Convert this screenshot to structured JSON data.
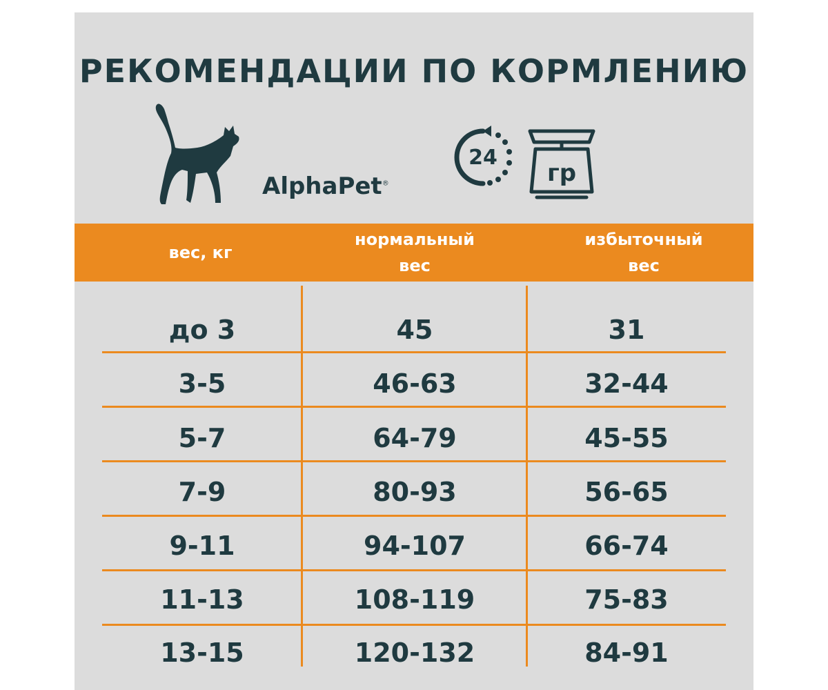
{
  "title": "РЕКОМЕНДАЦИИ ПО КОРМЛЕНИЮ",
  "brand": {
    "name": "AlphaPet",
    "mark": "®"
  },
  "icons": {
    "cat": "cat-silhouette-icon",
    "clock": "24-hour-cycle-icon",
    "scale": "kitchen-scale-icon"
  },
  "clock_label": "24",
  "scale_label": "гр",
  "colors": {
    "accent": "#eb8a1f",
    "text": "#1f3a40",
    "background": "#dcdcdc"
  },
  "table": {
    "headers": [
      [
        "вес, кг"
      ],
      [
        "нормальный",
        "вес"
      ],
      [
        "избыточный",
        "вес"
      ]
    ],
    "rows": [
      [
        "до 3",
        "45",
        "31"
      ],
      [
        "3-5",
        "46-63",
        "32-44"
      ],
      [
        "5-7",
        "64-79",
        "45-55"
      ],
      [
        "7-9",
        "80-93",
        "56-65"
      ],
      [
        "9-11",
        "94-107",
        "66-74"
      ],
      [
        "11-13",
        "108-119",
        "75-83"
      ],
      [
        "13-15",
        "120-132",
        "84-91"
      ]
    ]
  }
}
